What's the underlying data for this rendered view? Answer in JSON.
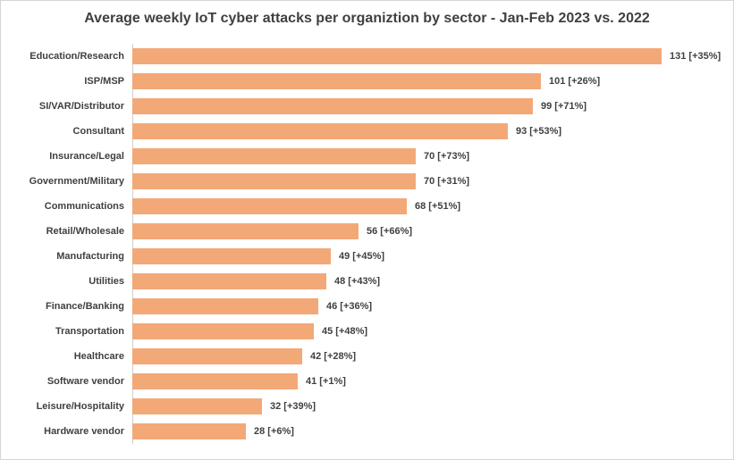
{
  "chart_data": {
    "type": "bar",
    "orientation": "horizontal",
    "title": "Average weekly IoT cyber attacks per organiztion by sector - Jan-Feb 2023 vs. 2022",
    "categories": [
      "Education/Research",
      "ISP/MSP",
      "SI/VAR/Distributor",
      "Consultant",
      "Insurance/Legal",
      "Government/Military",
      "Communications",
      "Retail/Wholesale",
      "Manufacturing",
      "Utilities",
      "Finance/Banking",
      "Transportation",
      "Healthcare",
      "Software vendor",
      "Leisure/Hospitality",
      "Hardware vendor"
    ],
    "values": [
      131,
      101,
      99,
      93,
      70,
      70,
      68,
      56,
      49,
      48,
      46,
      45,
      42,
      41,
      32,
      28
    ],
    "changes": [
      "+35%",
      "+26%",
      "+71%",
      "+53%",
      "+73%",
      "+31%",
      "+51%",
      "+66%",
      "+45%",
      "+43%",
      "+36%",
      "+48%",
      "+28%",
      "+1%",
      "+39%",
      "+6%"
    ],
    "data_labels": [
      "131 [+35%]",
      "101 [+26%]",
      "99 [+71%]",
      "93 [+53%]",
      "70 [+73%]",
      "70 [+31%]",
      "68 [+51%]",
      "56 [+66%]",
      "49 [+45%]",
      "48 [+43%]",
      "46 [+36%]",
      "45 [+48%]",
      "42 [+28%]",
      "41 [+1%]",
      "32 [+39%]",
      "28 [+6%]"
    ],
    "xlabel": "",
    "ylabel": "",
    "xlim": [
      0,
      140
    ],
    "grid": false,
    "legend": "none",
    "bar_color": "#F3A878",
    "axis_line_color": "#CFCDCD",
    "text_color": "#404040",
    "border_color": "#D6D6D6"
  }
}
